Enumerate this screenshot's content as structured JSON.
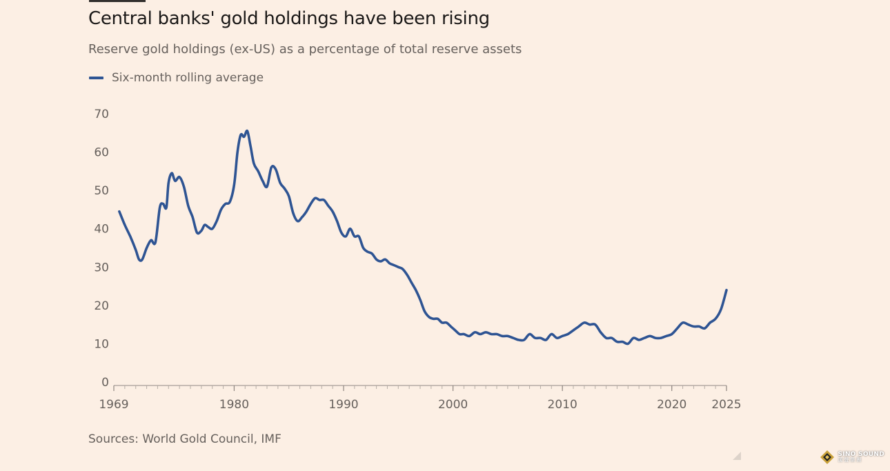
{
  "title": "Central banks' gold holdings have been rising",
  "subtitle": "Reserve gold holdings (ex-US) as a percentage of total reserve assets",
  "source": "Sources: World Gold Council, IMF",
  "watermark": {
    "main": "SINO SOUND",
    "sub": "漢聲集團"
  },
  "colors": {
    "background": "#fcefe4",
    "series": "#2e5493",
    "axis": "#b5aca5",
    "text": "#66605c"
  },
  "chart_data": {
    "type": "line",
    "title": "Central banks' gold holdings have been rising",
    "subtitle": "Reserve gold holdings (ex-US) as a percentage of total reserve assets",
    "xlabel": "",
    "ylabel": "",
    "xlim": [
      1969,
      2025
    ],
    "ylim": [
      0,
      70
    ],
    "grid": false,
    "legend_position": "top-left",
    "x_ticks": [
      1969,
      1980,
      1990,
      2000,
      2010,
      2020,
      2025
    ],
    "y_ticks": [
      0,
      10,
      20,
      30,
      40,
      50,
      60,
      70
    ],
    "series": [
      {
        "name": "Six-month rolling average",
        "color": "#2e5493",
        "x": [
          1969.5,
          1970.0,
          1970.5,
          1971.0,
          1971.3,
          1971.6,
          1972.0,
          1972.4,
          1972.8,
          1973.2,
          1973.5,
          1973.8,
          1974.0,
          1974.3,
          1974.6,
          1975.0,
          1975.4,
          1975.8,
          1976.2,
          1976.6,
          1977.0,
          1977.3,
          1977.6,
          1978.0,
          1978.4,
          1978.8,
          1979.2,
          1979.6,
          1980.0,
          1980.3,
          1980.6,
          1980.9,
          1981.2,
          1981.5,
          1981.8,
          1982.2,
          1982.6,
          1983.0,
          1983.4,
          1983.8,
          1984.2,
          1984.6,
          1985.0,
          1985.4,
          1985.8,
          1986.2,
          1986.6,
          1987.0,
          1987.4,
          1987.8,
          1988.2,
          1988.6,
          1989.0,
          1989.4,
          1989.8,
          1990.2,
          1990.6,
          1991.0,
          1991.4,
          1991.8,
          1992.2,
          1992.6,
          1993.0,
          1993.4,
          1993.8,
          1994.2,
          1994.6,
          1995.0,
          1995.4,
          1995.8,
          1996.2,
          1996.6,
          1997.0,
          1997.4,
          1997.8,
          1998.2,
          1998.6,
          1999.0,
          1999.4,
          1999.8,
          2000.2,
          2000.6,
          2001.0,
          2001.5,
          2002.0,
          2002.5,
          2003.0,
          2003.5,
          2004.0,
          2004.5,
          2005.0,
          2005.5,
          2006.0,
          2006.5,
          2007.0,
          2007.5,
          2008.0,
          2008.5,
          2009.0,
          2009.5,
          2010.0,
          2010.5,
          2011.0,
          2011.5,
          2012.0,
          2012.5,
          2013.0,
          2013.5,
          2014.0,
          2014.5,
          2015.0,
          2015.5,
          2016.0,
          2016.5,
          2017.0,
          2017.5,
          2018.0,
          2018.5,
          2019.0,
          2019.5,
          2020.0,
          2020.5,
          2021.0,
          2021.5,
          2022.0,
          2022.5,
          2023.0,
          2023.5,
          2024.0,
          2024.5,
          2025.0
        ],
        "values": [
          44.5,
          41.0,
          38.0,
          34.5,
          32.0,
          32.0,
          35.0,
          37.0,
          36.5,
          45.5,
          46.5,
          45.5,
          52.0,
          54.5,
          52.5,
          53.5,
          51.0,
          46.0,
          43.0,
          39.0,
          39.5,
          41.0,
          40.5,
          40.0,
          42.0,
          45.0,
          46.5,
          47.0,
          51.5,
          60.0,
          64.5,
          64.0,
          65.5,
          61.5,
          57.0,
          55.0,
          52.5,
          51.0,
          56.0,
          55.5,
          52.0,
          50.5,
          48.5,
          44.0,
          42.0,
          43.0,
          44.5,
          46.5,
          48.0,
          47.5,
          47.5,
          46.0,
          44.5,
          42.0,
          39.0,
          38.0,
          40.0,
          38.0,
          38.0,
          35.0,
          34.0,
          33.5,
          32.0,
          31.5,
          32.0,
          31.0,
          30.5,
          30.0,
          29.5,
          28.0,
          26.0,
          24.0,
          21.5,
          18.5,
          17.0,
          16.5,
          16.5,
          15.5,
          15.5,
          14.5,
          13.5,
          12.5,
          12.5,
          12.0,
          13.0,
          12.5,
          13.0,
          12.5,
          12.5,
          12.0,
          12.0,
          11.5,
          11.0,
          11.0,
          12.5,
          11.5,
          11.5,
          11.0,
          12.5,
          11.5,
          12.0,
          12.5,
          13.5,
          14.5,
          15.5,
          15.0,
          15.0,
          13.0,
          11.5,
          11.5,
          10.5,
          10.5,
          10.0,
          11.5,
          11.0,
          11.5,
          12.0,
          11.5,
          11.5,
          12.0,
          12.5,
          14.0,
          15.5,
          15.0,
          14.5,
          14.5,
          14.0,
          15.5,
          16.5,
          19.0,
          24.0
        ]
      }
    ]
  }
}
